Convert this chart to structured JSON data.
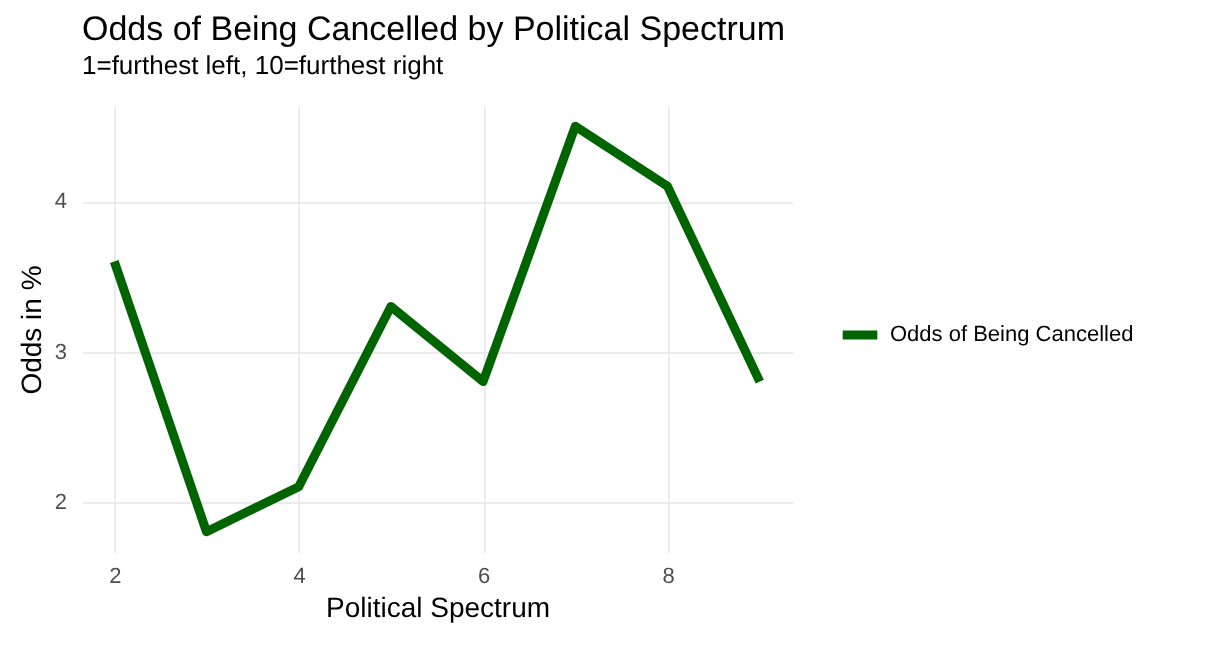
{
  "chart_data": {
    "type": "line",
    "title": "Odds of Being Cancelled by Political Spectrum",
    "subtitle": "1=furthest left, 10=furthest right",
    "xlabel": "Political Spectrum",
    "ylabel": "Odds in %",
    "x": [
      2,
      3,
      4,
      5,
      6,
      7,
      8,
      9
    ],
    "series": [
      {
        "name": "Odds of Being Cancelled",
        "color": "#006400",
        "values": [
          3.6,
          1.8,
          2.1,
          3.3,
          2.8,
          4.5,
          4.1,
          2.8
        ]
      }
    ],
    "xlim": [
      1.65,
      9.35
    ],
    "xticks": [
      2,
      4,
      6,
      8
    ],
    "ylim": [
      1.665,
      4.635
    ],
    "yticks": [
      2,
      3,
      4
    ],
    "grid": true,
    "legend": "right",
    "marker": "none",
    "line_style": "solid"
  }
}
